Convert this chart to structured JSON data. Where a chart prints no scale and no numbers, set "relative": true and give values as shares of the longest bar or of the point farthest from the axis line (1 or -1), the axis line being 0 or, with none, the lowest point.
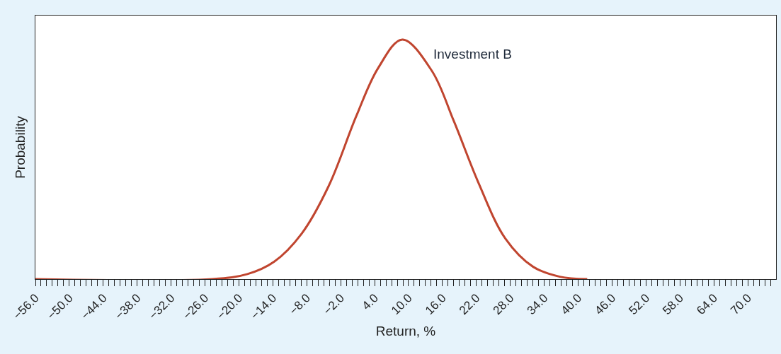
{
  "chart_data": {
    "type": "line",
    "relative": true,
    "xlabel": "Return, %",
    "ylabel": "Probability",
    "x": [
      -56,
      -24.75,
      -18.5,
      -13.75,
      -8.9,
      -4.1,
      0.75,
      4.6,
      8.9,
      14.1,
      18,
      22.4,
      27.1,
      32,
      36.75,
      41.6
    ],
    "series": [
      {
        "name": "Investment B",
        "color": "#c0452f",
        "values": [
          0,
          0,
          0.021,
          0.073,
          0.19,
          0.39,
          0.68,
          0.88,
          1,
          0.87,
          0.66,
          0.4,
          0.17,
          0.052,
          0.01,
          0
        ]
      }
    ],
    "xlim": [
      -56,
      75
    ],
    "xticks": [
      {
        "value": -56,
        "label": "−56.0"
      },
      {
        "value": -55,
        "label": null
      },
      {
        "value": -54,
        "label": null
      },
      {
        "value": -53,
        "label": null
      },
      {
        "value": -52,
        "label": null
      },
      {
        "value": -51,
        "label": null
      },
      {
        "value": -50,
        "label": "−50.0"
      },
      {
        "value": -49,
        "label": null
      },
      {
        "value": -48,
        "label": null
      },
      {
        "value": -47,
        "label": null
      },
      {
        "value": -46,
        "label": null
      },
      {
        "value": -45,
        "label": null
      },
      {
        "value": -44,
        "label": "−44.0"
      },
      {
        "value": -43,
        "label": null
      },
      {
        "value": -42,
        "label": null
      },
      {
        "value": -41,
        "label": null
      },
      {
        "value": -40,
        "label": null
      },
      {
        "value": -39,
        "label": null
      },
      {
        "value": -38,
        "label": "−38.0"
      },
      {
        "value": -37,
        "label": null
      },
      {
        "value": -36,
        "label": null
      },
      {
        "value": -35,
        "label": null
      },
      {
        "value": -34,
        "label": null
      },
      {
        "value": -33,
        "label": null
      },
      {
        "value": -32,
        "label": "−32.0"
      },
      {
        "value": -31,
        "label": null
      },
      {
        "value": -30,
        "label": null
      },
      {
        "value": -29,
        "label": null
      },
      {
        "value": -28,
        "label": null
      },
      {
        "value": -27,
        "label": null
      },
      {
        "value": -26,
        "label": "−26.0"
      },
      {
        "value": -25,
        "label": null
      },
      {
        "value": -24,
        "label": null
      },
      {
        "value": -23,
        "label": null
      },
      {
        "value": -22,
        "label": null
      },
      {
        "value": -21,
        "label": null
      },
      {
        "value": -20,
        "label": "−20.0"
      },
      {
        "value": -19,
        "label": null
      },
      {
        "value": -18,
        "label": null
      },
      {
        "value": -17,
        "label": null
      },
      {
        "value": -16,
        "label": null
      },
      {
        "value": -15,
        "label": null
      },
      {
        "value": -14,
        "label": "−14.0"
      },
      {
        "value": -13,
        "label": null
      },
      {
        "value": -12,
        "label": null
      },
      {
        "value": -11,
        "label": null
      },
      {
        "value": -10,
        "label": null
      },
      {
        "value": -9,
        "label": null
      },
      {
        "value": -8,
        "label": "−8.0"
      },
      {
        "value": -7,
        "label": null
      },
      {
        "value": -6,
        "label": null
      },
      {
        "value": -5,
        "label": null
      },
      {
        "value": -4,
        "label": null
      },
      {
        "value": -3,
        "label": null
      },
      {
        "value": -2,
        "label": "−2.0"
      },
      {
        "value": -1,
        "label": null
      },
      {
        "value": 0,
        "label": null
      },
      {
        "value": 1,
        "label": null
      },
      {
        "value": 2,
        "label": null
      },
      {
        "value": 3,
        "label": null
      },
      {
        "value": 4,
        "label": "4.0"
      },
      {
        "value": 5,
        "label": null
      },
      {
        "value": 6,
        "label": null
      },
      {
        "value": 7,
        "label": null
      },
      {
        "value": 8,
        "label": null
      },
      {
        "value": 9,
        "label": null
      },
      {
        "value": 10,
        "label": "10.0"
      },
      {
        "value": 11,
        "label": null
      },
      {
        "value": 12,
        "label": null
      },
      {
        "value": 13,
        "label": null
      },
      {
        "value": 14,
        "label": null
      },
      {
        "value": 15,
        "label": null
      },
      {
        "value": 16,
        "label": "16.0"
      },
      {
        "value": 17,
        "label": null
      },
      {
        "value": 18,
        "label": null
      },
      {
        "value": 19,
        "label": null
      },
      {
        "value": 20,
        "label": null
      },
      {
        "value": 21,
        "label": null
      },
      {
        "value": 22,
        "label": "22.0"
      },
      {
        "value": 23,
        "label": null
      },
      {
        "value": 24,
        "label": null
      },
      {
        "value": 25,
        "label": null
      },
      {
        "value": 26,
        "label": null
      },
      {
        "value": 27,
        "label": null
      },
      {
        "value": 28,
        "label": "28.0"
      },
      {
        "value": 29,
        "label": null
      },
      {
        "value": 30,
        "label": null
      },
      {
        "value": 31,
        "label": null
      },
      {
        "value": 32,
        "label": null
      },
      {
        "value": 33,
        "label": null
      },
      {
        "value": 34,
        "label": "34.0"
      },
      {
        "value": 35,
        "label": null
      },
      {
        "value": 36,
        "label": null
      },
      {
        "value": 37,
        "label": null
      },
      {
        "value": 38,
        "label": null
      },
      {
        "value": 39,
        "label": null
      },
      {
        "value": 40,
        "label": "40.0"
      },
      {
        "value": 41,
        "label": null
      },
      {
        "value": 42,
        "label": null
      },
      {
        "value": 43,
        "label": null
      },
      {
        "value": 44,
        "label": null
      },
      {
        "value": 45,
        "label": null
      },
      {
        "value": 46,
        "label": "46.0"
      },
      {
        "value": 47,
        "label": null
      },
      {
        "value": 48,
        "label": null
      },
      {
        "value": 49,
        "label": null
      },
      {
        "value": 50,
        "label": null
      },
      {
        "value": 51,
        "label": null
      },
      {
        "value": 52,
        "label": "52.0"
      },
      {
        "value": 53,
        "label": null
      },
      {
        "value": 54,
        "label": null
      },
      {
        "value": 55,
        "label": null
      },
      {
        "value": 56,
        "label": null
      },
      {
        "value": 57,
        "label": null
      },
      {
        "value": 58,
        "label": "58.0"
      },
      {
        "value": 59,
        "label": null
      },
      {
        "value": 60,
        "label": null
      },
      {
        "value": 61,
        "label": null
      },
      {
        "value": 62,
        "label": null
      },
      {
        "value": 63,
        "label": null
      },
      {
        "value": 64,
        "label": "64.0"
      },
      {
        "value": 65,
        "label": null
      },
      {
        "value": 66,
        "label": null
      },
      {
        "value": 67,
        "label": null
      },
      {
        "value": 68,
        "label": null
      },
      {
        "value": 69,
        "label": null
      },
      {
        "value": 70,
        "label": "70.0"
      },
      {
        "value": 71,
        "label": null
      },
      {
        "value": 72,
        "label": null
      },
      {
        "value": 73,
        "label": null
      },
      {
        "value": 74,
        "label": null
      }
    ],
    "line_style": "solid",
    "marker": "none"
  }
}
